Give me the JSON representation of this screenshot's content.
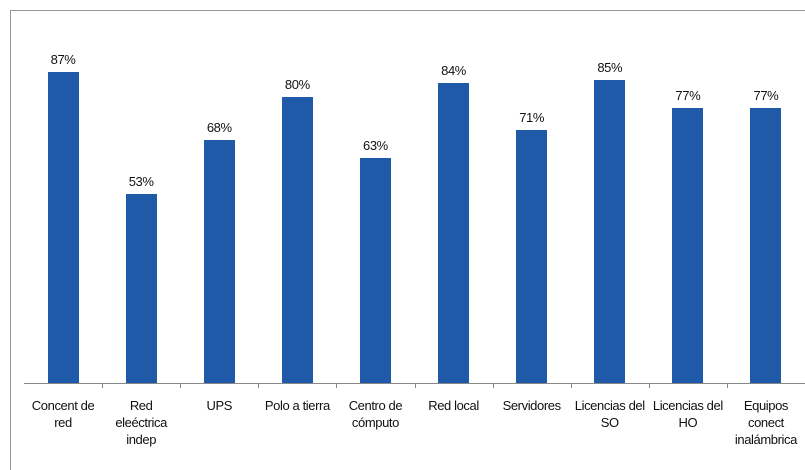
{
  "chart_data": {
    "type": "bar",
    "categories": [
      "Concent de red",
      "Red eleéctrica indep",
      "UPS",
      "Polo a tierra",
      "Centro de cómputo",
      "Red local",
      "Servidores",
      "Licencias del SO",
      "Licencias del HO",
      "Equipos conect inalámbrica"
    ],
    "values": [
      87,
      53,
      68,
      80,
      63,
      84,
      71,
      85,
      77,
      77
    ],
    "value_labels": [
      "87%",
      "53%",
      "68%",
      "80%",
      "63%",
      "84%",
      "71%",
      "85%",
      "77%",
      "77%"
    ],
    "color": "#1f5aa8",
    "ylim": [
      0,
      100
    ]
  }
}
